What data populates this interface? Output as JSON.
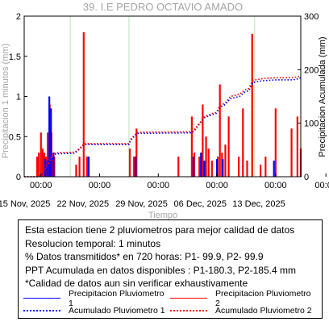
{
  "chart_data": {
    "type": "line",
    "title": "39. I.E PEDRO OCTAVIO AMADO",
    "xlabel": "Tiempo",
    "ylabel_left": "Precipitacion 1 minutos (mm)",
    "ylabel_right": "Precipitacion Acumulada (mm)",
    "ylim_left": [
      0,
      2
    ],
    "ylim_right": [
      0,
      300
    ],
    "yticks_left": [
      "0",
      "0.5",
      "1",
      "1.5",
      "2"
    ],
    "yticks_right": [
      "0",
      "100",
      "200",
      "300"
    ],
    "xlim_days": [
      0,
      33
    ],
    "xticks_time": [
      "00:00",
      "00:00",
      "00:00",
      "00:00",
      "00:00",
      "00:00"
    ],
    "xticks_time_day": [
      2,
      9,
      16,
      23,
      30,
      36
    ],
    "xticks_date": [
      "15 Nov, 2025",
      "22 Nov, 2025",
      "29 Nov, 2025",
      "06 Dec, 2025",
      "13 Dec, 2025"
    ],
    "xticks_date_day": [
      0,
      7,
      14,
      21,
      28
    ],
    "green_lines_day": [
      5.5,
      12.5,
      27.5
    ],
    "series": [
      {
        "name": "Precipitacion Pluviometro 1",
        "color": "#0000ff",
        "style": "bars",
        "points": [
          [
            2.5,
            0.22
          ],
          [
            2.75,
            0.2
          ],
          [
            3.0,
            1.0
          ],
          [
            3.2,
            0.85
          ],
          [
            3.5,
            0.3
          ],
          [
            7.7,
            0.25
          ],
          [
            13.3,
            0.25
          ],
          [
            20.2,
            0.25
          ],
          [
            21.1,
            0.3
          ],
          [
            21.5,
            0.2
          ],
          [
            23.0,
            0.22
          ],
          [
            23.7,
            0.22
          ],
          [
            29.8,
            0.2
          ]
        ]
      },
      {
        "name": "Precipitacion Pluviometro 2",
        "color": "#ff0000",
        "style": "bars",
        "points": [
          [
            1.55,
            0.25
          ],
          [
            1.75,
            0.3
          ],
          [
            2.0,
            0.55
          ],
          [
            2.2,
            0.35
          ],
          [
            2.4,
            0.3
          ],
          [
            2.6,
            0.25
          ],
          [
            2.8,
            0.55
          ],
          [
            3.05,
            0.9
          ],
          [
            3.25,
            0.55
          ],
          [
            3.4,
            0.25
          ],
          [
            3.6,
            0.25
          ],
          [
            6.2,
            0.15
          ],
          [
            6.6,
            0.25
          ],
          [
            7.1,
            1.8
          ],
          [
            7.5,
            0.25
          ],
          [
            12.6,
            0.35
          ],
          [
            13.1,
            0.25
          ],
          [
            13.4,
            0.6
          ],
          [
            18.4,
            0.25
          ],
          [
            20.0,
            0.75
          ],
          [
            20.3,
            0.3
          ],
          [
            20.9,
            0.25
          ],
          [
            21.3,
            0.9
          ],
          [
            21.7,
            0.5
          ],
          [
            22.0,
            0.35
          ],
          [
            22.4,
            0.2
          ],
          [
            23.1,
            0.25
          ],
          [
            23.35,
            1.15
          ],
          [
            23.6,
            0.3
          ],
          [
            24.0,
            0.4
          ],
          [
            24.4,
            0.75
          ],
          [
            25.6,
            0.25
          ],
          [
            26.1,
            0.85
          ],
          [
            26.6,
            0.2
          ],
          [
            27.2,
            1.78
          ],
          [
            28.2,
            0.15
          ],
          [
            28.8,
            0.25
          ],
          [
            30.0,
            0.85
          ],
          [
            31.9,
            0.6
          ],
          [
            32.6,
            0.75
          ],
          [
            33.0,
            0.35
          ]
        ]
      },
      {
        "name": "Acumulado Pluviometro 1",
        "color": "#0000ff",
        "style": "dotted",
        "points": [
          [
            0.0,
            0.0
          ],
          [
            1.8,
            0.0
          ],
          [
            2.4,
            9.0
          ],
          [
            3.0,
            22.0
          ],
          [
            3.6,
            42.0
          ],
          [
            4.2,
            43.0
          ],
          [
            6.0,
            44.0
          ],
          [
            6.3,
            47.0
          ],
          [
            7.2,
            60.0
          ],
          [
            12.5,
            60.0
          ],
          [
            12.7,
            68.0
          ],
          [
            13.5,
            81.0
          ],
          [
            20.0,
            82.0
          ],
          [
            20.3,
            86.0
          ],
          [
            21.5,
            110.0
          ],
          [
            22.4,
            116.0
          ],
          [
            22.9,
            118.0
          ],
          [
            23.4,
            130.0
          ],
          [
            24.0,
            135.0
          ],
          [
            24.6,
            146.0
          ],
          [
            25.7,
            150.0
          ],
          [
            26.3,
            158.0
          ],
          [
            26.8,
            161.0
          ],
          [
            27.3,
            176.0
          ],
          [
            28.3,
            179.0
          ],
          [
            29.0,
            180.0
          ],
          [
            30.2,
            181.0
          ],
          [
            32.0,
            181.0
          ],
          [
            32.7,
            183.0
          ],
          [
            33.0,
            185.0
          ]
        ]
      },
      {
        "name": "Acumulado Pluviometro 2",
        "color": "#ff0000",
        "style": "dotted",
        "points": [
          [
            0.0,
            0.0
          ],
          [
            1.7,
            0.0
          ],
          [
            2.3,
            10.0
          ],
          [
            2.9,
            25.0
          ],
          [
            3.5,
            44.0
          ],
          [
            4.2,
            45.0
          ],
          [
            6.0,
            46.0
          ],
          [
            6.3,
            49.0
          ],
          [
            7.2,
            62.0
          ],
          [
            12.5,
            62.0
          ],
          [
            12.7,
            70.0
          ],
          [
            13.5,
            83.0
          ],
          [
            20.0,
            84.0
          ],
          [
            20.3,
            88.0
          ],
          [
            21.5,
            112.0
          ],
          [
            22.4,
            118.0
          ],
          [
            22.9,
            120.0
          ],
          [
            23.4,
            133.0
          ],
          [
            24.0,
            138.0
          ],
          [
            24.6,
            150.0
          ],
          [
            25.7,
            154.0
          ],
          [
            26.3,
            162.0
          ],
          [
            26.8,
            165.0
          ],
          [
            27.3,
            180.0
          ],
          [
            28.3,
            183.0
          ],
          [
            29.0,
            184.0
          ],
          [
            30.2,
            185.0
          ],
          [
            32.0,
            185.0
          ],
          [
            32.7,
            187.0
          ],
          [
            33.0,
            189.0
          ]
        ]
      }
    ]
  },
  "info": {
    "lines": [
      "Esta estacion tiene 2 pluviometros para mejor calidad de datos",
      "Resolucion temporal: 1 minutos",
      "% Datos transmitidos* en 720 horas: P1- 99.9, P2- 99.9",
      "PPT Acumulada en datos disponibles : P1-180.3, P2-185.4 mm",
      "*Calidad de datos aun sin verificar exhaustivamente"
    ],
    "legend": [
      {
        "label": "Precipitacion Pluviometro 1",
        "color": "#0000ff",
        "style": "solid"
      },
      {
        "label": "Precipitacion Pluviometro 2",
        "color": "#ff0000",
        "style": "solid"
      },
      {
        "label": "Acumulado Pluviometro 1",
        "color": "#0000ff",
        "style": "dotted"
      },
      {
        "label": "Acumulado Pluviometro 2",
        "color": "#ff0000",
        "style": "dotted"
      }
    ]
  }
}
